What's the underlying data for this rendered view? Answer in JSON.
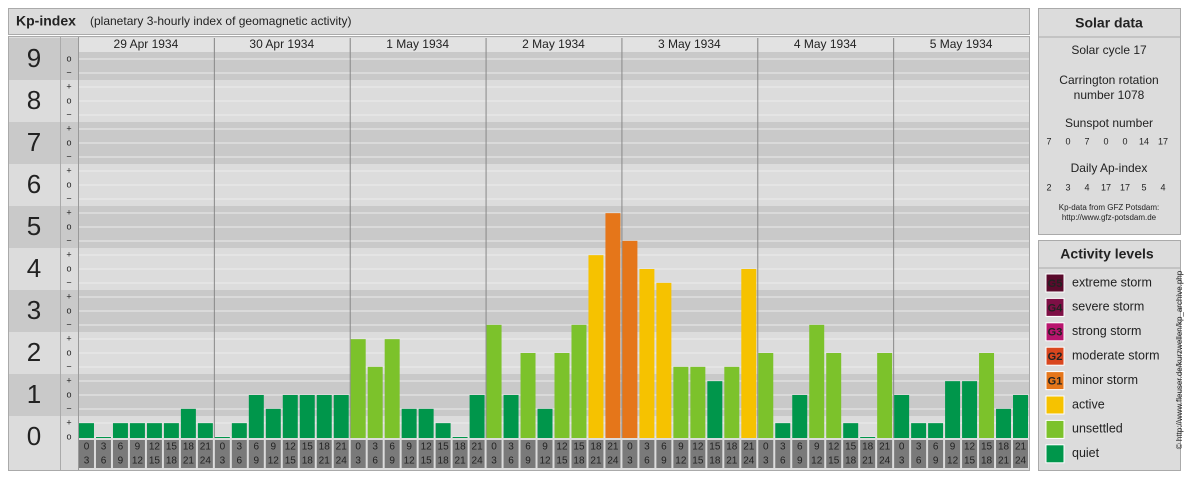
{
  "header": {
    "title": "Kp-index",
    "subtitle": "(planetary 3-hourly index of geomagnetic activity)"
  },
  "chart_data": {
    "type": "bar",
    "ylim": [
      0,
      9.5
    ],
    "yticks": [
      0,
      1,
      2,
      3,
      4,
      5,
      6,
      7,
      8,
      9
    ],
    "minor_tick_labels": [
      "−",
      "o",
      "+"
    ],
    "hour_marks": [
      0,
      3,
      6,
      9,
      12,
      15,
      18,
      21,
      24
    ],
    "days": [
      {
        "date": "29 Apr 1934",
        "values": [
          0.33,
          0,
          0.33,
          0.33,
          0.33,
          0.33,
          0.67,
          0.33
        ],
        "colors": [
          "#00964b",
          "#00964b",
          "#00964b",
          "#00964b",
          "#00964b",
          "#00964b",
          "#00964b",
          "#00964b"
        ]
      },
      {
        "date": "30 Apr 1934",
        "values": [
          0,
          0.33,
          1,
          0.67,
          1,
          1,
          1,
          1
        ],
        "colors": [
          "#00964b",
          "#00964b",
          "#00964b",
          "#00964b",
          "#00964b",
          "#00964b",
          "#00964b",
          "#00964b"
        ]
      },
      {
        "date": "1 May 1934",
        "values": [
          2.33,
          1.67,
          2.33,
          0.67,
          0.67,
          0.33,
          0,
          1
        ],
        "colors": [
          "#7cc22b",
          "#7cc22b",
          "#7cc22b",
          "#00964b",
          "#00964b",
          "#00964b",
          "#00964b",
          "#00964b"
        ]
      },
      {
        "date": "2 May 1934",
        "values": [
          2.67,
          1,
          2,
          0.67,
          2,
          2.67,
          4.33,
          5.33
        ],
        "colors": [
          "#7cc22b",
          "#00964b",
          "#7cc22b",
          "#00964b",
          "#7cc22b",
          "#7cc22b",
          "#f6c200",
          "#e5761a"
        ]
      },
      {
        "date": "3 May 1934",
        "values": [
          4.67,
          4,
          3.67,
          1.67,
          1.67,
          1.33,
          1.67,
          4
        ],
        "colors": [
          "#e5761a",
          "#f6c200",
          "#f6c200",
          "#7cc22b",
          "#7cc22b",
          "#00964b",
          "#7cc22b",
          "#f6c200"
        ]
      },
      {
        "date": "4 May 1934",
        "values": [
          2,
          0.33,
          1,
          2.67,
          2,
          0.33,
          0,
          2
        ],
        "colors": [
          "#7cc22b",
          "#00964b",
          "#00964b",
          "#7cc22b",
          "#7cc22b",
          "#00964b",
          "#00964b",
          "#7cc22b"
        ]
      },
      {
        "date": "5 May 1934",
        "values": [
          1,
          0.33,
          0.33,
          1.33,
          1.33,
          2,
          0.67,
          1
        ],
        "colors": [
          "#00964b",
          "#00964b",
          "#00964b",
          "#00964b",
          "#00964b",
          "#7cc22b",
          "#00964b",
          "#00964b"
        ]
      }
    ]
  },
  "solar_data": {
    "title": "Solar data",
    "cycle": "Solar cycle 17",
    "carrington": [
      "Carrington rotation",
      "number 1078"
    ],
    "sunspot_title": "Sunspot number",
    "sunspot_values": [
      7,
      0,
      7,
      0,
      0,
      14,
      17
    ],
    "ap_title": "Daily Ap-index",
    "ap_values": [
      2,
      3,
      4,
      17,
      17,
      5,
      4
    ],
    "source": [
      "Kp-data from GFZ Potsdam:",
      "http://www.gfz-potsdam.de"
    ]
  },
  "activity_levels": {
    "title": "Activity levels",
    "levels": [
      {
        "code": "G5",
        "name": "extreme storm",
        "color": "#5a0a2c"
      },
      {
        "code": "G4",
        "name": "severe storm",
        "color": "#7d0f45"
      },
      {
        "code": "G3",
        "name": "strong storm",
        "color": "#b8156e"
      },
      {
        "code": "G2",
        "name": "moderate storm",
        "color": "#d9461e"
      },
      {
        "code": "G1",
        "name": "minor storm",
        "color": "#e5761a"
      },
      {
        "name": "active",
        "color": "#f6c200"
      },
      {
        "name": "unsettled",
        "color": "#7cc22b"
      },
      {
        "name": "quiet",
        "color": "#00964b"
      }
    ]
  },
  "credit": "© http://www.fleuser.de/kurzwellen/kp_archive.php"
}
